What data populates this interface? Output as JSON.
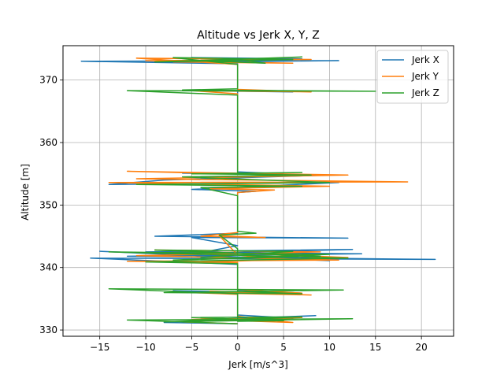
{
  "chart_data": {
    "type": "line",
    "title": "Altitude vs Jerk X, Y, Z",
    "xlabel": "Jerk [m/s^3]",
    "ylabel": "Altitude [m]",
    "xlim": [
      -19,
      23.5
    ],
    "ylim": [
      329,
      375.5
    ],
    "xticks": [
      -15,
      -10,
      -5,
      0,
      5,
      10,
      15,
      20
    ],
    "yticks": [
      330,
      340,
      350,
      360,
      370
    ],
    "grid": true,
    "legend_position": "upper right",
    "series": [
      {
        "name": "Jerk X",
        "color": "#1f77b4",
        "points": [
          [
            0,
            331
          ],
          [
            -8,
            331.2
          ],
          [
            8.5,
            332.3
          ],
          [
            -5,
            331.6
          ],
          [
            6,
            331.9
          ],
          [
            0,
            332.4
          ],
          [
            0,
            334.5
          ],
          [
            0,
            336
          ],
          [
            -7,
            336.3
          ],
          [
            7,
            335.9
          ],
          [
            0,
            336.4
          ],
          [
            0,
            340.5
          ],
          [
            -16,
            341.5
          ],
          [
            21.5,
            341.3
          ],
          [
            -12,
            341.8
          ],
          [
            13.5,
            342.2
          ],
          [
            -10,
            342.5
          ],
          [
            12.5,
            342.9
          ],
          [
            -8,
            342.1
          ],
          [
            5,
            341.4
          ],
          [
            0,
            341.6
          ],
          [
            -15,
            342.6
          ],
          [
            10,
            341.1
          ],
          [
            -4,
            342.4
          ],
          [
            0,
            343.5
          ],
          [
            -5,
            344.8
          ],
          [
            12,
            344.7
          ],
          [
            -9,
            345
          ],
          [
            0,
            345.5
          ],
          [
            0,
            352
          ],
          [
            2,
            352.2
          ],
          [
            -5,
            352.5
          ],
          [
            11,
            353.6
          ],
          [
            -14,
            353.3
          ],
          [
            -8,
            354
          ],
          [
            10,
            354.8
          ],
          [
            -6,
            355.1
          ],
          [
            5,
            355
          ],
          [
            0,
            355.3
          ],
          [
            0,
            367.5
          ],
          [
            0,
            368.2
          ],
          [
            -4,
            368.3
          ],
          [
            6,
            368.1
          ],
          [
            0,
            368.4
          ],
          [
            0,
            372.6
          ],
          [
            -17,
            373
          ],
          [
            11,
            373.1
          ],
          [
            -8,
            372.8
          ],
          [
            7,
            373.4
          ],
          [
            -5,
            373.6
          ],
          [
            0,
            373.2
          ]
        ]
      },
      {
        "name": "Jerk Y",
        "color": "#ff7f0e",
        "points": [
          [
            0,
            331
          ],
          [
            -6,
            331.3
          ],
          [
            7,
            332
          ],
          [
            -5,
            331.7
          ],
          [
            6,
            331.2
          ],
          [
            0,
            332.2
          ],
          [
            0,
            334.5
          ],
          [
            0,
            335.7
          ],
          [
            -5,
            336
          ],
          [
            8,
            335.6
          ],
          [
            -3,
            336.2
          ],
          [
            7,
            335.9
          ],
          [
            0,
            336.5
          ],
          [
            0,
            340.8
          ],
          [
            -12,
            341
          ],
          [
            11,
            341.2
          ],
          [
            -11,
            341.9
          ],
          [
            9,
            342.5
          ],
          [
            -9,
            342.8
          ],
          [
            12,
            341.6
          ],
          [
            -5,
            340.8
          ],
          [
            4,
            341.3
          ],
          [
            0,
            342
          ],
          [
            -2,
            345.1
          ],
          [
            3,
            344.8
          ],
          [
            -4,
            345
          ],
          [
            0,
            345.6
          ],
          [
            0,
            352
          ],
          [
            4,
            352.4
          ],
          [
            -3,
            352.6
          ],
          [
            10,
            353
          ],
          [
            -14,
            353.6
          ],
          [
            18.5,
            353.7
          ],
          [
            -11,
            354.2
          ],
          [
            12,
            354.8
          ],
          [
            -12,
            355.4
          ],
          [
            8,
            354.7
          ],
          [
            0,
            355.1
          ],
          [
            0,
            367.8
          ],
          [
            -5,
            368.3
          ],
          [
            8,
            368.1
          ],
          [
            0,
            368.5
          ],
          [
            0,
            372.5
          ],
          [
            -11,
            373.5
          ],
          [
            8,
            373.3
          ],
          [
            -10,
            373.1
          ],
          [
            6,
            372.7
          ],
          [
            -7,
            372.9
          ],
          [
            0,
            373.4
          ]
        ]
      },
      {
        "name": "Jerk Z",
        "color": "#2ca02c",
        "points": [
          [
            0,
            331
          ],
          [
            -12,
            331.6
          ],
          [
            12.5,
            331.8
          ],
          [
            -8,
            331.3
          ],
          [
            7,
            332.1
          ],
          [
            -5,
            332
          ],
          [
            5,
            331.5
          ],
          [
            0,
            331.4
          ],
          [
            0,
            334.6
          ],
          [
            0,
            335.8
          ],
          [
            -14,
            336.6
          ],
          [
            11.5,
            336.4
          ],
          [
            -8,
            336
          ],
          [
            7,
            335.8
          ],
          [
            0,
            336.2
          ],
          [
            0,
            340.6
          ],
          [
            -10,
            340.9
          ],
          [
            12,
            341.5
          ],
          [
            -14,
            342.5
          ],
          [
            10,
            342.1
          ],
          [
            -7,
            341.2
          ],
          [
            9,
            341.8
          ],
          [
            -9,
            342.8
          ],
          [
            6,
            342.6
          ],
          [
            -4,
            341.6
          ],
          [
            0,
            342
          ],
          [
            0,
            343
          ],
          [
            -2,
            345.2
          ],
          [
            2,
            345.5
          ],
          [
            0,
            345.8
          ],
          [
            0,
            351.5
          ],
          [
            -4,
            352.8
          ],
          [
            7,
            353
          ],
          [
            -11,
            353.3
          ],
          [
            10,
            353.6
          ],
          [
            -6,
            354.5
          ],
          [
            8,
            354.8
          ],
          [
            -5,
            355
          ],
          [
            7,
            355.2
          ],
          [
            0,
            355.1
          ],
          [
            0,
            360
          ],
          [
            0,
            366
          ],
          [
            0,
            367.6
          ],
          [
            -12,
            368.3
          ],
          [
            15,
            368.2
          ],
          [
            -6,
            368.4
          ],
          [
            0,
            368.6
          ],
          [
            0,
            370.5
          ],
          [
            0,
            372.5
          ],
          [
            -7,
            373.6
          ],
          [
            6,
            373.3
          ],
          [
            -9,
            372.9
          ],
          [
            7,
            373.7
          ],
          [
            -4,
            373.1
          ],
          [
            3,
            372.7
          ],
          [
            0,
            373.3
          ]
        ]
      }
    ]
  }
}
